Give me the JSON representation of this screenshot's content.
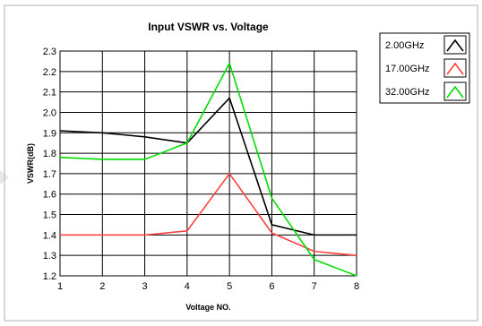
{
  "chart_data": {
    "type": "line",
    "title": "Input VSWR vs. Voltage",
    "xlabel": "Voltage NO.",
    "ylabel": "VSWR(dB)",
    "x": [
      1,
      2,
      3,
      4,
      5,
      6,
      7,
      8
    ],
    "xlim": [
      1,
      8
    ],
    "ylim": [
      1.2,
      2.3
    ],
    "xticks": [
      "1",
      "2",
      "3",
      "4",
      "5",
      "6",
      "7",
      "8"
    ],
    "yticks": [
      "1.2",
      "1.3",
      "1.4",
      "1.5",
      "1.6",
      "1.7",
      "1.8",
      "1.9",
      "2.0",
      "2.1",
      "2.2",
      "2.3"
    ],
    "grid": true,
    "legend_position": "top-right",
    "series": [
      {
        "name": "2.00GHz",
        "color": "#000000",
        "values": [
          1.91,
          1.9,
          1.88,
          1.85,
          2.07,
          1.45,
          1.4,
          1.4
        ]
      },
      {
        "name": "17.00GHz",
        "color": "#ff4040",
        "values": [
          1.4,
          1.4,
          1.4,
          1.42,
          1.7,
          1.41,
          1.32,
          1.3
        ]
      },
      {
        "name": "32.00GHz",
        "color": "#00dd00",
        "values": [
          1.78,
          1.77,
          1.77,
          1.85,
          2.24,
          1.58,
          1.28,
          1.2
        ]
      }
    ]
  }
}
